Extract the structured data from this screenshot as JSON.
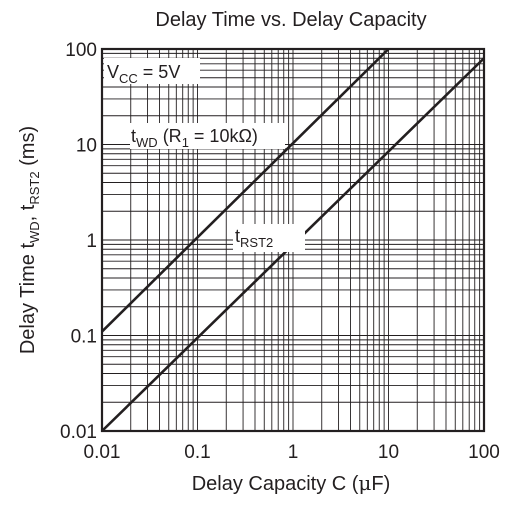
{
  "chart_data": {
    "type": "line",
    "title": "Delay Time vs. Delay Capacity",
    "x_axis": {
      "label_main": "Delay Capacity   C   (",
      "label_unit_mu": "μ",
      "label_unit_rest": "F)",
      "scale": "log",
      "range": [
        0.01,
        100
      ],
      "ticks": [
        0.01,
        0.1,
        1,
        10,
        100
      ],
      "tick_labels": [
        "0.01",
        "0.1",
        "1",
        "10",
        "100"
      ]
    },
    "y_axis": {
      "label_prefix": "Delay Time   t",
      "label_sub1": "WD",
      "label_mid": ", t",
      "label_sub2": "RST2",
      "label_unit": "   (ms)",
      "scale": "log",
      "range": [
        0.01,
        100
      ],
      "ticks": [
        0.01,
        0.1,
        1,
        10,
        100
      ],
      "tick_labels": [
        "0.01",
        "0.1",
        "1",
        "10",
        "100"
      ]
    },
    "grid": true,
    "series": [
      {
        "name_main": "t",
        "name_sub": "WD",
        "name_rest": " (R",
        "name_sub2": "1",
        "name_rest2": " = 10kΩ)",
        "x": [
          0.01,
          10
        ],
        "y": [
          0.11,
          100
        ]
      },
      {
        "name_main": "t",
        "name_sub": "RST2",
        "x": [
          0.01,
          100
        ],
        "y": [
          0.01,
          80
        ]
      }
    ],
    "annotations": [
      {
        "text_main": "V",
        "text_sub": "CC",
        "text_rest": " = 5V"
      }
    ]
  }
}
